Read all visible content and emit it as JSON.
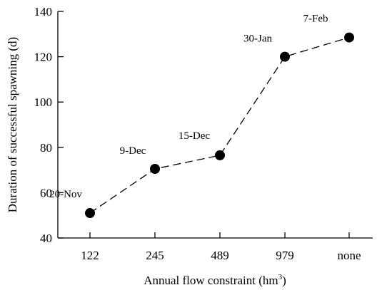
{
  "chart_data": {
    "type": "line",
    "categories": [
      "122",
      "245",
      "489",
      "979",
      "none"
    ],
    "series": [
      {
        "values": [
          51,
          70.5,
          76.5,
          120,
          128.5
        ]
      }
    ],
    "point_labels": [
      "20-Nov",
      "9-Dec",
      "15-Dec",
      "30-Jan",
      "7-Feb"
    ],
    "xlabel_main": "Annual flow constraint (hm",
    "xlabel_sup": "3",
    "xlabel_end": ")",
    "ylabel": "Duration of successful spawning (d)",
    "ylim": [
      40,
      140
    ],
    "yticks": [
      40,
      60,
      80,
      100,
      120,
      140
    ],
    "grid": false,
    "line_style": "dashed",
    "marker": "filled-circle",
    "color": "#000000"
  }
}
